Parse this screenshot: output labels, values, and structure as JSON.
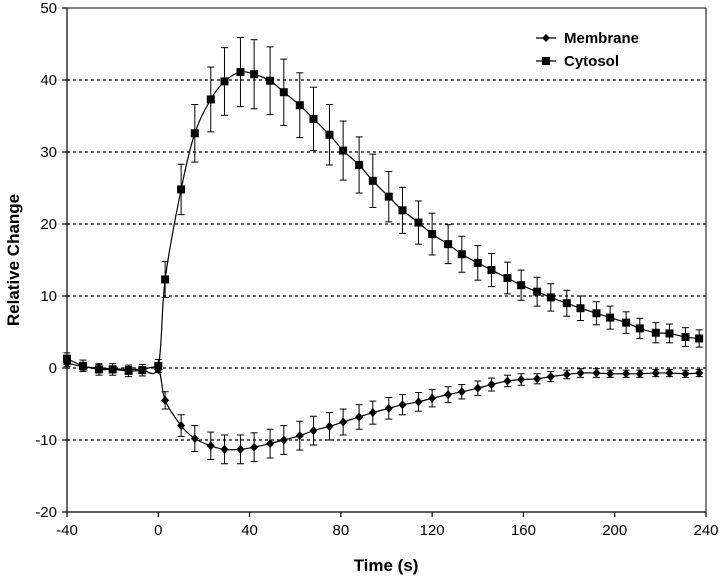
{
  "chart_data": {
    "type": "line",
    "xlabel": "Time (s)",
    "ylabel": "Relative Change",
    "xlim": [
      -40,
      240
    ],
    "ylim": [
      -20,
      50
    ],
    "x_ticks": [
      -40,
      0,
      40,
      80,
      120,
      160,
      200,
      240
    ],
    "y_ticks": [
      -20,
      -10,
      0,
      10,
      20,
      30,
      40,
      50
    ],
    "grid": "horizontal dotted",
    "legend_position": "top-right",
    "x": [
      -40,
      -33,
      -26,
      -20,
      -13,
      -7,
      0,
      3,
      10,
      16,
      23,
      29,
      36,
      42,
      49,
      55,
      62,
      68,
      75,
      81,
      88,
      94,
      101,
      107,
      114,
      120,
      127,
      133,
      140,
      146,
      153,
      159,
      166,
      172,
      179,
      185,
      192,
      198,
      205,
      211,
      218,
      224,
      231,
      237
    ],
    "series": [
      {
        "name": "Membrane",
        "marker": "diamond",
        "color": "#000000",
        "values": [
          0.7,
          0.2,
          0,
          -0.1,
          -0.2,
          -0.2,
          -0.2,
          -4.5,
          -8,
          -9.8,
          -10.8,
          -11.3,
          -11.3,
          -11,
          -10.5,
          -10,
          -9.4,
          -8.7,
          -8.1,
          -7.5,
          -6.8,
          -6.2,
          -5.6,
          -5.1,
          -4.7,
          -4.2,
          -3.7,
          -3.3,
          -2.8,
          -2.3,
          -1.8,
          -1.6,
          -1.5,
          -1.2,
          -0.9,
          -0.7,
          -0.7,
          -0.8,
          -0.8,
          -0.8,
          -0.7,
          -0.7,
          -0.8,
          -0.7
        ],
        "errors": [
          0.5,
          0.5,
          0.5,
          0.4,
          0.4,
          0.4,
          0.4,
          1.2,
          1.5,
          1.8,
          1.9,
          2,
          2,
          2,
          2,
          2,
          2,
          2,
          1.9,
          1.8,
          1.7,
          1.6,
          1.5,
          1.4,
          1.3,
          1.2,
          1.1,
          1,
          1,
          0.9,
          0.8,
          0.8,
          0.7,
          0.7,
          0.6,
          0.6,
          0.6,
          0.5,
          0.5,
          0.5,
          0.5,
          0.5,
          0.5,
          0.5
        ]
      },
      {
        "name": "Cytosol",
        "marker": "square",
        "color": "#000000",
        "values": [
          1.3,
          0.3,
          -0.2,
          -0.2,
          -0.4,
          -0.3,
          0.3,
          12.3,
          24.8,
          32.6,
          37.3,
          39.8,
          41.1,
          40.8,
          39.9,
          38.3,
          36.5,
          34.6,
          32.4,
          30.2,
          28.2,
          26,
          23.8,
          21.9,
          20.2,
          18.6,
          17.2,
          15.8,
          14.6,
          13.6,
          12.5,
          11.5,
          10.6,
          9.8,
          9,
          8.3,
          7.6,
          7,
          6.3,
          5.5,
          4.9,
          4.8,
          4.3,
          4.1
        ],
        "errors": [
          0.8,
          0.8,
          0.8,
          0.8,
          0.8,
          0.8,
          0.9,
          2.5,
          3.5,
          4,
          4.5,
          4.7,
          4.8,
          4.8,
          4.7,
          4.6,
          4.5,
          4.4,
          4.2,
          4.1,
          3.9,
          3.7,
          3.5,
          3.2,
          3,
          2.9,
          2.7,
          2.5,
          2.4,
          2.3,
          2.2,
          2.1,
          2,
          1.9,
          1.8,
          1.7,
          1.6,
          1.6,
          1.5,
          1.4,
          1.4,
          1.3,
          1.3,
          1.2
        ]
      }
    ]
  }
}
